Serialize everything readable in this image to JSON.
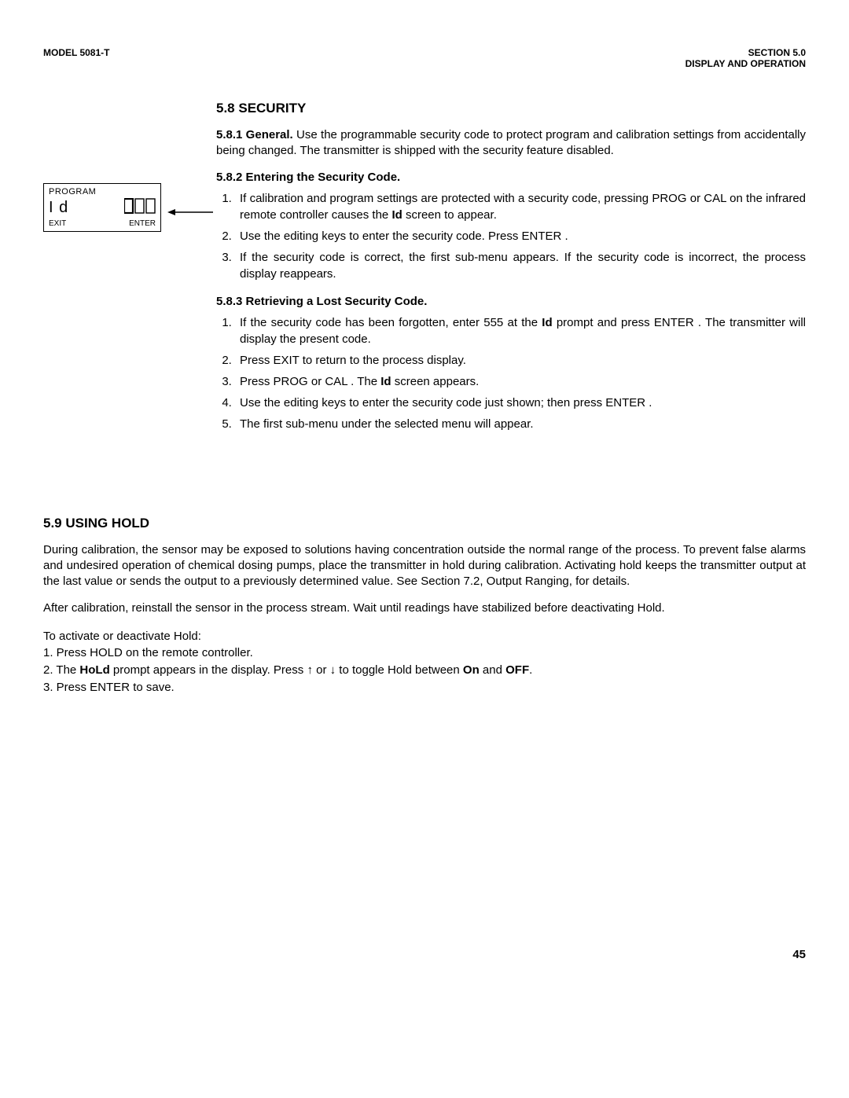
{
  "header": {
    "left": "MODEL 5081-T",
    "right_line1": "SECTION 5.0",
    "right_line2": "DISPLAY AND OPERATION"
  },
  "displayBox": {
    "top": "PROGRAM",
    "midLeft": "I d",
    "midRight": "000",
    "botLeft": "EXIT",
    "botRight": "ENTER"
  },
  "sec58": {
    "title": "5.8 SECURITY",
    "p581_label": "5.8.1  General.",
    "p581_text": " Use the programmable security code to protect program and calibration settings from accidentally being changed. The transmitter is shipped with the security feature disabled.",
    "p582_title": "5.8.2  Entering the Security Code.",
    "p582_items": [
      "If calibration and program settings are protected with a security code, pressing  PROG or  CAL  on the infrared remote controller causes the <b>Id</b> screen to appear.",
      " Use the editing keys to enter the security code. Press  ENTER .",
      "If the security code is correct, the first sub-menu appears. If the security code is incorrect, the process display reappears."
    ],
    "p583_title": "5.8.3  Retrieving a Lost Security Code.",
    "p583_items": [
      "If the security code has been forgotten, enter 555 at the <b>Id</b> prompt and press  ENTER . The transmitter will display the present code.",
      "Press  EXIT  to return to the process display.",
      "Press  PROG  or  CAL . The <b>Id</b> screen appears.",
      "Use the editing keys to enter the security code just shown; then press  ENTER .",
      "The first sub-menu under the selected menu will appear."
    ]
  },
  "sec59": {
    "title": "5.9 USING HOLD",
    "para1": "During calibration, the sensor may be exposed to solutions having concentration outside the normal range of the process. To prevent false alarms and undesired operation of chemical dosing pumps, place the transmitter in hold during calibration. Activating hold keeps the transmitter output at the last value or sends the output to a previously determined value. See Section 7.2, Output Ranging, for details.",
    "para2": "After calibration, reinstall the sensor in the process stream. Wait until readings have stabilized before deactivating Hold.",
    "para3": "To activate or deactivate Hold:",
    "step1": "1. Press  HOLD  on the remote controller.",
    "step2_pre": "2. The ",
    "step2_bold1": "HoLd",
    "step2_mid1": " prompt appears in the display. Press ",
    "step2_arrow_up": "↑",
    "step2_or": " or ",
    "step2_arrow_dn": "↓",
    "step2_mid2": " to toggle Hold between ",
    "step2_bold2": "On",
    "step2_and": " and ",
    "step2_bold3": "OFF",
    "step2_end": ".",
    "step3": "3. Press  ENTER  to save."
  },
  "pageNumber": "45"
}
